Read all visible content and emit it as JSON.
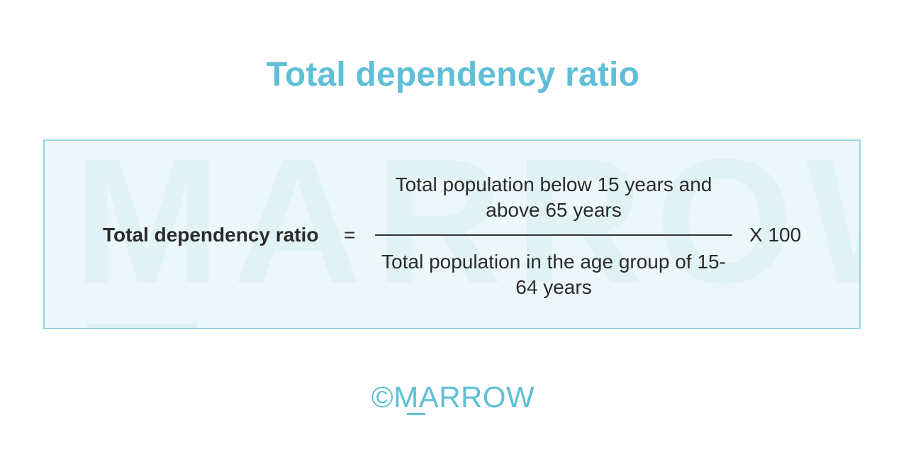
{
  "title": "Total dependency ratio",
  "formula": {
    "lhs": "Total dependency ratio",
    "equals": "=",
    "numerator": "Total population below 15 years and above 65 years",
    "denominator": "Total population in the age group of 15-64 years",
    "multiplier": "X 100"
  },
  "watermark": "MARROW",
  "brand": "©MARROW",
  "colors": {
    "accent": "#5fbfd6",
    "text": "#2b2b2b",
    "box_border": "#93d3e1",
    "box_fill": "#ebf7f9"
  }
}
